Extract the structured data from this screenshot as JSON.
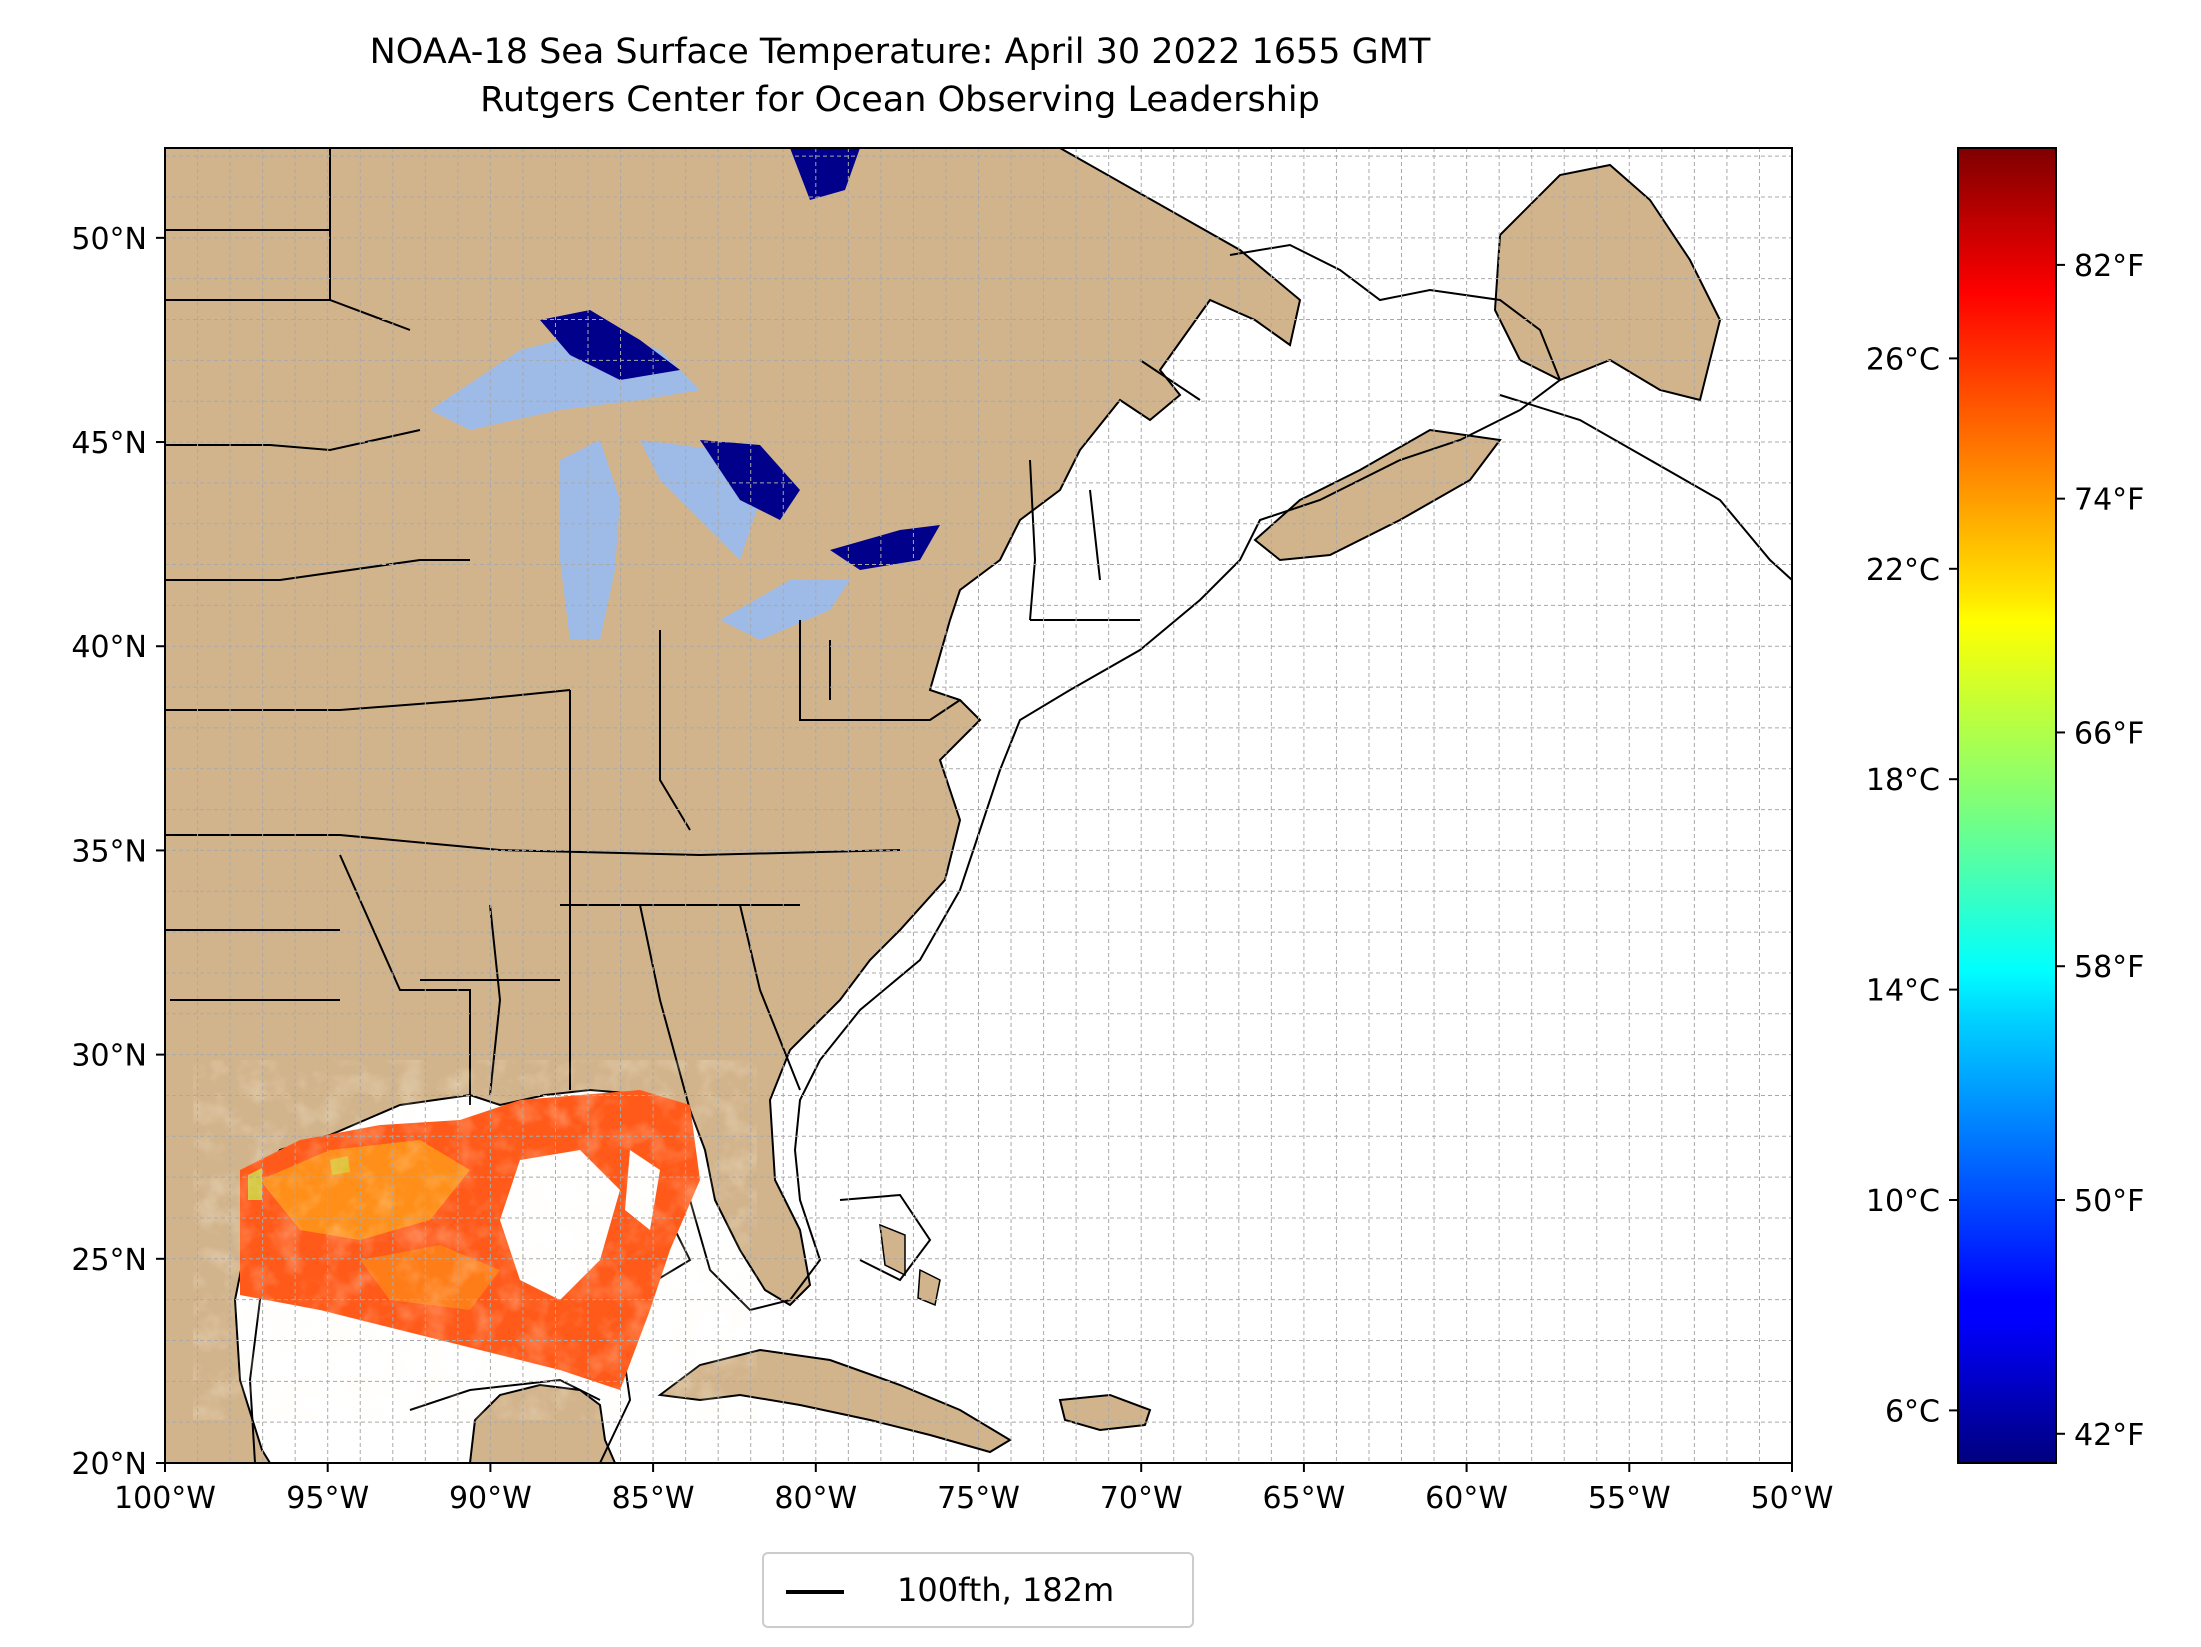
{
  "title": {
    "line1": "NOAA-18 Sea Surface Temperature: April 30 2022 1655 GMT",
    "line2": "Rutgers Center for Ocean Observing Leadership"
  },
  "map": {
    "lon_range": [
      -100,
      -50
    ],
    "lat_range": [
      20,
      52.2
    ],
    "gridlines": true,
    "x_ticks": [
      "100°W",
      "95°W",
      "90°W",
      "85°W",
      "80°W",
      "75°W",
      "70°W",
      "65°W",
      "60°W",
      "55°W",
      "50°W"
    ],
    "y_ticks": [
      "20°N",
      "25°N",
      "30°N",
      "35°N",
      "40°N",
      "45°N",
      "50°N"
    ],
    "x_tick_values": [
      -100,
      -95,
      -90,
      -85,
      -80,
      -75,
      -70,
      -65,
      -60,
      -55,
      -50
    ],
    "y_tick_values": [
      20,
      25,
      30,
      35,
      40,
      45,
      50
    ],
    "colors": {
      "land": "#d2b48c",
      "lakes": "#9dbbe6",
      "ocean": "#ffffff",
      "contour": "#000000"
    }
  },
  "colorbar": {
    "colormap": "jet",
    "range_c": [
      5,
      30
    ],
    "celsius_ticks": [
      "6°C",
      "10°C",
      "14°C",
      "18°C",
      "22°C",
      "26°C"
    ],
    "celsius_values": [
      6,
      10,
      14,
      18,
      22,
      26
    ],
    "fahrenheit_ticks": [
      "42°F",
      "50°F",
      "58°F",
      "66°F",
      "74°F",
      "82°F"
    ],
    "fahrenheit_values": [
      42,
      50,
      58,
      66,
      74,
      82
    ]
  },
  "legend": {
    "label": "100fth, 182m",
    "placement": "bottom-center"
  }
}
